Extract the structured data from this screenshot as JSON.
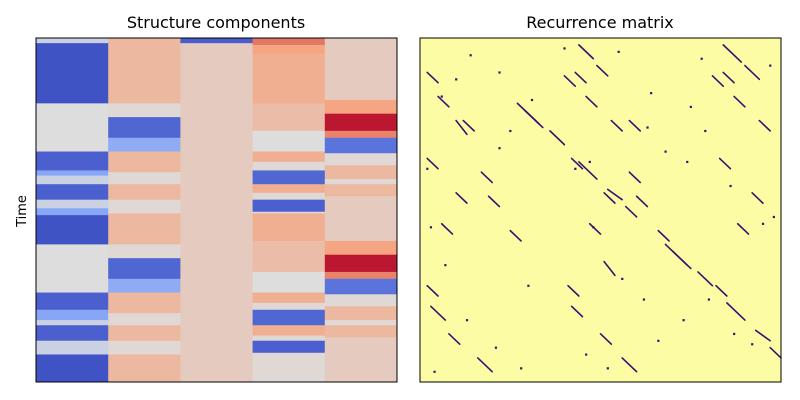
{
  "chart_data": [
    {
      "type": "heatmap",
      "title": "Structure components",
      "xlabel": "",
      "ylabel": "Time",
      "colormap": "coolwarm",
      "n_components": 5,
      "ticks_shown": false,
      "component_segments": [
        [
          {
            "start": 0.0,
            "end": 0.015,
            "value": 0.45
          },
          {
            "start": 0.015,
            "end": 0.19,
            "value": 0.02
          },
          {
            "start": 0.19,
            "end": 0.33,
            "value": 0.5
          },
          {
            "start": 0.33,
            "end": 0.385,
            "value": 0.06
          },
          {
            "start": 0.385,
            "end": 0.4,
            "value": 0.28
          },
          {
            "start": 0.4,
            "end": 0.425,
            "value": 0.45
          },
          {
            "start": 0.425,
            "end": 0.47,
            "value": 0.06
          },
          {
            "start": 0.47,
            "end": 0.495,
            "value": 0.45
          },
          {
            "start": 0.495,
            "end": 0.515,
            "value": 0.28
          },
          {
            "start": 0.515,
            "end": 0.6,
            "value": 0.02
          },
          {
            "start": 0.6,
            "end": 0.74,
            "value": 0.5
          },
          {
            "start": 0.74,
            "end": 0.79,
            "value": 0.06
          },
          {
            "start": 0.79,
            "end": 0.82,
            "value": 0.28
          },
          {
            "start": 0.82,
            "end": 0.835,
            "value": 0.45
          },
          {
            "start": 0.835,
            "end": 0.88,
            "value": 0.06
          },
          {
            "start": 0.88,
            "end": 0.92,
            "value": 0.45
          },
          {
            "start": 0.92,
            "end": 1.0,
            "value": 0.02
          }
        ],
        [
          {
            "start": 0.0,
            "end": 0.19,
            "value": 0.66
          },
          {
            "start": 0.19,
            "end": 0.23,
            "value": 0.52
          },
          {
            "start": 0.23,
            "end": 0.29,
            "value": 0.08
          },
          {
            "start": 0.29,
            "end": 0.33,
            "value": 0.3
          },
          {
            "start": 0.33,
            "end": 0.39,
            "value": 0.66
          },
          {
            "start": 0.39,
            "end": 0.425,
            "value": 0.52
          },
          {
            "start": 0.425,
            "end": 0.47,
            "value": 0.66
          },
          {
            "start": 0.47,
            "end": 0.51,
            "value": 0.52
          },
          {
            "start": 0.51,
            "end": 0.6,
            "value": 0.66
          },
          {
            "start": 0.6,
            "end": 0.64,
            "value": 0.52
          },
          {
            "start": 0.64,
            "end": 0.7,
            "value": 0.08
          },
          {
            "start": 0.7,
            "end": 0.74,
            "value": 0.3
          },
          {
            "start": 0.74,
            "end": 0.8,
            "value": 0.66
          },
          {
            "start": 0.8,
            "end": 0.835,
            "value": 0.52
          },
          {
            "start": 0.835,
            "end": 0.88,
            "value": 0.66
          },
          {
            "start": 0.88,
            "end": 0.92,
            "value": 0.52
          },
          {
            "start": 0.92,
            "end": 1.0,
            "value": 0.66
          }
        ],
        [
          {
            "start": 0.0,
            "end": 0.015,
            "value": 0.05
          },
          {
            "start": 0.015,
            "end": 1.0,
            "value": 0.58
          }
        ],
        [
          {
            "start": 0.0,
            "end": 0.02,
            "value": 0.82
          },
          {
            "start": 0.02,
            "end": 0.045,
            "value": 0.74
          },
          {
            "start": 0.045,
            "end": 0.19,
            "value": 0.7
          },
          {
            "start": 0.19,
            "end": 0.27,
            "value": 0.64
          },
          {
            "start": 0.27,
            "end": 0.33,
            "value": 0.5
          },
          {
            "start": 0.33,
            "end": 0.36,
            "value": 0.7
          },
          {
            "start": 0.36,
            "end": 0.385,
            "value": 0.52
          },
          {
            "start": 0.385,
            "end": 0.425,
            "value": 0.08
          },
          {
            "start": 0.425,
            "end": 0.45,
            "value": 0.7
          },
          {
            "start": 0.45,
            "end": 0.47,
            "value": 0.52
          },
          {
            "start": 0.47,
            "end": 0.505,
            "value": 0.06
          },
          {
            "start": 0.505,
            "end": 0.51,
            "value": 0.52
          },
          {
            "start": 0.51,
            "end": 0.59,
            "value": 0.7
          },
          {
            "start": 0.59,
            "end": 0.68,
            "value": 0.64
          },
          {
            "start": 0.68,
            "end": 0.74,
            "value": 0.5
          },
          {
            "start": 0.74,
            "end": 0.77,
            "value": 0.7
          },
          {
            "start": 0.77,
            "end": 0.79,
            "value": 0.52
          },
          {
            "start": 0.79,
            "end": 0.835,
            "value": 0.08
          },
          {
            "start": 0.835,
            "end": 0.865,
            "value": 0.7
          },
          {
            "start": 0.865,
            "end": 0.88,
            "value": 0.52
          },
          {
            "start": 0.88,
            "end": 0.915,
            "value": 0.06
          },
          {
            "start": 0.915,
            "end": 1.0,
            "value": 0.52
          }
        ],
        [
          {
            "start": 0.0,
            "end": 0.18,
            "value": 0.58
          },
          {
            "start": 0.18,
            "end": 0.22,
            "value": 0.74
          },
          {
            "start": 0.22,
            "end": 0.27,
            "value": 0.97
          },
          {
            "start": 0.27,
            "end": 0.29,
            "value": 0.8
          },
          {
            "start": 0.29,
            "end": 0.335,
            "value": 0.12
          },
          {
            "start": 0.335,
            "end": 0.37,
            "value": 0.52
          },
          {
            "start": 0.37,
            "end": 0.41,
            "value": 0.66
          },
          {
            "start": 0.41,
            "end": 0.425,
            "value": 0.52
          },
          {
            "start": 0.425,
            "end": 0.46,
            "value": 0.66
          },
          {
            "start": 0.46,
            "end": 0.49,
            "value": 0.58
          },
          {
            "start": 0.49,
            "end": 0.59,
            "value": 0.58
          },
          {
            "start": 0.59,
            "end": 0.63,
            "value": 0.74
          },
          {
            "start": 0.63,
            "end": 0.68,
            "value": 0.97
          },
          {
            "start": 0.68,
            "end": 0.7,
            "value": 0.8
          },
          {
            "start": 0.7,
            "end": 0.745,
            "value": 0.12
          },
          {
            "start": 0.745,
            "end": 0.78,
            "value": 0.52
          },
          {
            "start": 0.78,
            "end": 0.82,
            "value": 0.66
          },
          {
            "start": 0.82,
            "end": 0.835,
            "value": 0.52
          },
          {
            "start": 0.835,
            "end": 0.87,
            "value": 0.66
          },
          {
            "start": 0.87,
            "end": 0.9,
            "value": 0.58
          },
          {
            "start": 0.9,
            "end": 1.0,
            "value": 0.58
          }
        ]
      ]
    },
    {
      "type": "heatmap",
      "title": "Recurrence matrix",
      "xlabel": "",
      "ylabel": "",
      "colormap": "magma-binary",
      "background_color": "#fbfca3",
      "mark_color": "#3b0f70",
      "ticks_shown": false,
      "diagonal_segments": [
        [
          0.27,
          0.19,
          0.33,
          0.25
        ],
        [
          0.29,
          0.21,
          0.34,
          0.26
        ],
        [
          0.36,
          0.27,
          0.4,
          0.31
        ],
        [
          0.44,
          0.36,
          0.49,
          0.41
        ],
        [
          0.52,
          0.44,
          0.56,
          0.47
        ],
        [
          0.57,
          0.49,
          0.6,
          0.52
        ],
        [
          0.02,
          0.1,
          0.05,
          0.13
        ],
        [
          0.12,
          0.24,
          0.15,
          0.27
        ],
        [
          0.05,
          0.17,
          0.08,
          0.2
        ],
        [
          0.17,
          0.39,
          0.2,
          0.42
        ],
        [
          0.19,
          0.46,
          0.22,
          0.49
        ],
        [
          0.25,
          0.56,
          0.28,
          0.59
        ],
        [
          0.02,
          0.35,
          0.05,
          0.38
        ],
        [
          0.1,
          0.45,
          0.13,
          0.48
        ],
        [
          0.06,
          0.54,
          0.09,
          0.57
        ],
        [
          0.03,
          0.78,
          0.07,
          0.82
        ],
        [
          0.08,
          0.86,
          0.11,
          0.89
        ],
        [
          0.16,
          0.93,
          0.2,
          0.97
        ],
        [
          0.42,
          0.78,
          0.45,
          0.81
        ],
        [
          0.5,
          0.86,
          0.53,
          0.89
        ],
        [
          0.56,
          0.93,
          0.6,
          0.97
        ],
        [
          0.68,
          0.6,
          0.74,
          0.66
        ],
        [
          0.7,
          0.62,
          0.75,
          0.67
        ],
        [
          0.77,
          0.68,
          0.81,
          0.72
        ],
        [
          0.85,
          0.77,
          0.9,
          0.82
        ],
        [
          0.93,
          0.85,
          0.97,
          0.88
        ],
        [
          0.97,
          0.9,
          1.0,
          0.93
        ],
        [
          0.43,
          0.1,
          0.46,
          0.13
        ],
        [
          0.53,
          0.24,
          0.56,
          0.27
        ],
        [
          0.46,
          0.17,
          0.49,
          0.2
        ],
        [
          0.58,
          0.39,
          0.61,
          0.42
        ],
        [
          0.6,
          0.46,
          0.63,
          0.49
        ],
        [
          0.66,
          0.56,
          0.69,
          0.59
        ],
        [
          0.42,
          0.35,
          0.45,
          0.38
        ],
        [
          0.51,
          0.45,
          0.54,
          0.48
        ],
        [
          0.47,
          0.54,
          0.5,
          0.57
        ],
        [
          0.84,
          0.1,
          0.87,
          0.13
        ],
        [
          0.94,
          0.24,
          0.97,
          0.27
        ],
        [
          0.87,
          0.17,
          0.9,
          0.2
        ],
        [
          0.83,
          0.35,
          0.86,
          0.38
        ],
        [
          0.92,
          0.45,
          0.95,
          0.48
        ],
        [
          0.88,
          0.54,
          0.91,
          0.57
        ],
        [
          0.44,
          0.02,
          0.48,
          0.06
        ],
        [
          0.49,
          0.08,
          0.52,
          0.11
        ],
        [
          0.4,
          0.11,
          0.43,
          0.14
        ],
        [
          0.84,
          0.02,
          0.89,
          0.07
        ],
        [
          0.9,
          0.08,
          0.94,
          0.12
        ],
        [
          0.81,
          0.11,
          0.84,
          0.14
        ],
        [
          0.02,
          0.72,
          0.05,
          0.75
        ],
        [
          0.41,
          0.72,
          0.44,
          0.75
        ],
        [
          0.82,
          0.72,
          0.85,
          0.75
        ],
        [
          0.1,
          0.24,
          0.13,
          0.28
        ],
        [
          0.51,
          0.65,
          0.54,
          0.69
        ],
        [
          0.58,
          0.24,
          0.61,
          0.27
        ]
      ],
      "dots": [
        [
          0.1,
          0.12
        ],
        [
          0.22,
          0.1
        ],
        [
          0.06,
          0.17
        ],
        [
          0.14,
          0.05
        ],
        [
          0.31,
          0.18
        ],
        [
          0.25,
          0.27
        ],
        [
          0.22,
          0.32
        ],
        [
          0.02,
          0.38
        ],
        [
          0.03,
          0.55
        ],
        [
          0.07,
          0.66
        ],
        [
          0.13,
          0.82
        ],
        [
          0.21,
          0.9
        ],
        [
          0.04,
          0.97
        ],
        [
          0.28,
          0.96
        ],
        [
          0.3,
          0.72
        ],
        [
          0.43,
          0.38
        ],
        [
          0.47,
          0.36
        ],
        [
          0.48,
          0.55
        ],
        [
          0.63,
          0.26
        ],
        [
          0.68,
          0.33
        ],
        [
          0.74,
          0.36
        ],
        [
          0.79,
          0.27
        ],
        [
          0.86,
          0.43
        ],
        [
          0.95,
          0.54
        ],
        [
          0.98,
          0.52
        ],
        [
          0.56,
          0.7
        ],
        [
          0.62,
          0.76
        ],
        [
          0.66,
          0.88
        ],
        [
          0.73,
          0.82
        ],
        [
          0.8,
          0.76
        ],
        [
          0.87,
          0.86
        ],
        [
          0.92,
          0.89
        ],
        [
          0.46,
          0.92
        ],
        [
          0.52,
          0.96
        ],
        [
          0.4,
          0.03
        ],
        [
          0.55,
          0.04
        ],
        [
          0.78,
          0.06
        ],
        [
          0.97,
          0.08
        ],
        [
          0.64,
          0.16
        ],
        [
          0.75,
          0.2
        ]
      ]
    }
  ]
}
